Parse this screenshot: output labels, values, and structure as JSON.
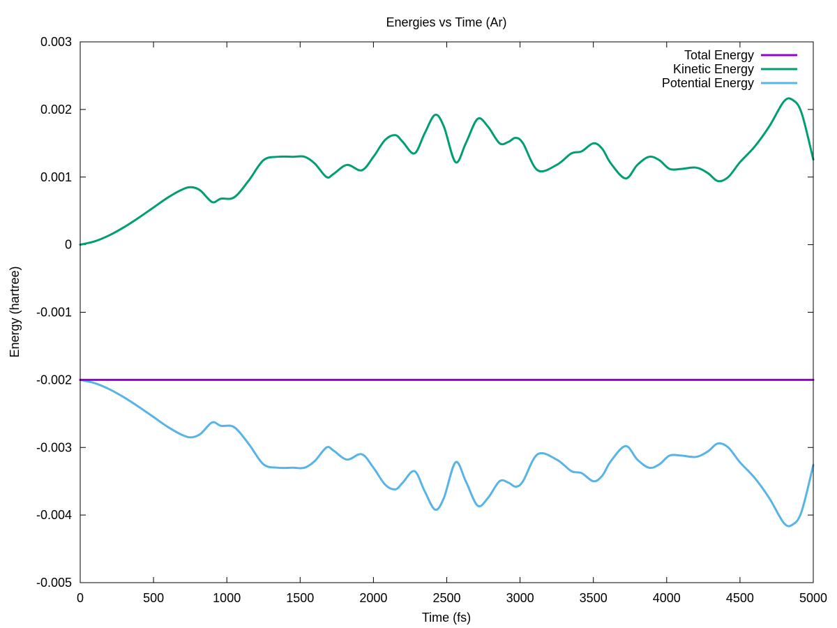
{
  "chart_data": {
    "type": "line",
    "title": "Energies vs Time (Ar)",
    "xlabel": "Time (fs)",
    "ylabel": "Energy (hartree)",
    "xlim": [
      0,
      5000
    ],
    "ylim": [
      -0.005,
      0.003
    ],
    "x_ticks": [
      0,
      500,
      1000,
      1500,
      2000,
      2500,
      3000,
      3500,
      4000,
      4500,
      5000
    ],
    "y_ticks": [
      -0.005,
      -0.004,
      -0.003,
      -0.002,
      -0.001,
      0,
      0.001,
      0.002,
      0.003
    ],
    "x_tick_labels": [
      "0",
      "500",
      "1000",
      "1500",
      "2000",
      "2500",
      "3000",
      "3500",
      "4000",
      "4500",
      "5000"
    ],
    "y_tick_labels": [
      "-0.005",
      "-0.004",
      "-0.003",
      "-0.002",
      "-0.001",
      "0",
      "0.001",
      "0.002",
      "0.003"
    ],
    "grid": false,
    "legend_position": "top-right",
    "series": [
      {
        "name": "Total Energy",
        "color": "#9400d3",
        "x": [
          0,
          500,
          1000,
          1500,
          2000,
          2500,
          3000,
          3500,
          4000,
          4500,
          5000
        ],
        "y": [
          -0.002,
          -0.002,
          -0.002,
          -0.002,
          -0.002,
          -0.002,
          -0.002,
          -0.002,
          -0.002,
          -0.002,
          -0.002
        ]
      },
      {
        "name": "Kinetic Energy",
        "color": "#009e73",
        "x": [
          0,
          100,
          200,
          300,
          400,
          500,
          600,
          700,
          760,
          820,
          900,
          960,
          1050,
          1150,
          1250,
          1350,
          1450,
          1530,
          1600,
          1680,
          1730,
          1820,
          1920,
          2000,
          2080,
          2150,
          2200,
          2280,
          2350,
          2420,
          2480,
          2560,
          2630,
          2710,
          2780,
          2860,
          2920,
          2970,
          3020,
          3120,
          3250,
          3350,
          3420,
          3500,
          3560,
          3620,
          3720,
          3800,
          3880,
          3950,
          4020,
          4100,
          4200,
          4280,
          4350,
          4420,
          4500,
          4600,
          4700,
          4800,
          4860,
          4920,
          5000
        ],
        "y": [
          0.0,
          5e-05,
          0.00014,
          0.00026,
          0.0004,
          0.00055,
          0.0007,
          0.00082,
          0.00085,
          0.0008,
          0.00063,
          0.00068,
          0.0007,
          0.00095,
          0.00125,
          0.0013,
          0.0013,
          0.0013,
          0.0012,
          0.001,
          0.00105,
          0.00118,
          0.0011,
          0.0013,
          0.00155,
          0.00162,
          0.00152,
          0.00135,
          0.00165,
          0.00192,
          0.00175,
          0.00122,
          0.0015,
          0.00186,
          0.00175,
          0.0015,
          0.00152,
          0.00158,
          0.0015,
          0.0011,
          0.00118,
          0.00135,
          0.00138,
          0.0015,
          0.00142,
          0.0012,
          0.00098,
          0.00118,
          0.0013,
          0.00125,
          0.00112,
          0.00112,
          0.00114,
          0.00106,
          0.00094,
          0.001,
          0.00122,
          0.00145,
          0.00175,
          0.00212,
          0.00214,
          0.00195,
          0.00126
        ]
      },
      {
        "name": "Potential Energy",
        "color": "#56b4e9",
        "x": [
          0,
          100,
          200,
          300,
          400,
          500,
          600,
          700,
          760,
          820,
          900,
          960,
          1050,
          1150,
          1250,
          1350,
          1450,
          1530,
          1600,
          1680,
          1730,
          1820,
          1920,
          2000,
          2080,
          2150,
          2200,
          2280,
          2350,
          2420,
          2480,
          2560,
          2630,
          2710,
          2780,
          2860,
          2920,
          2970,
          3020,
          3120,
          3250,
          3350,
          3420,
          3500,
          3560,
          3620,
          3720,
          3800,
          3880,
          3950,
          4020,
          4100,
          4200,
          4280,
          4350,
          4420,
          4500,
          4600,
          4700,
          4800,
          4860,
          4920,
          5000
        ],
        "y": [
          -0.002,
          -0.00205,
          -0.00214,
          -0.00226,
          -0.0024,
          -0.00255,
          -0.0027,
          -0.00282,
          -0.00285,
          -0.0028,
          -0.00263,
          -0.00268,
          -0.0027,
          -0.00295,
          -0.00325,
          -0.0033,
          -0.0033,
          -0.0033,
          -0.0032,
          -0.003,
          -0.00305,
          -0.00318,
          -0.0031,
          -0.0033,
          -0.00355,
          -0.00362,
          -0.00352,
          -0.00335,
          -0.00365,
          -0.00392,
          -0.00375,
          -0.00322,
          -0.0035,
          -0.00386,
          -0.00375,
          -0.0035,
          -0.00352,
          -0.00358,
          -0.0035,
          -0.0031,
          -0.00318,
          -0.00335,
          -0.00338,
          -0.0035,
          -0.00342,
          -0.0032,
          -0.00298,
          -0.00318,
          -0.0033,
          -0.00325,
          -0.00312,
          -0.00312,
          -0.00314,
          -0.00306,
          -0.00294,
          -0.003,
          -0.00322,
          -0.00345,
          -0.00375,
          -0.00412,
          -0.00414,
          -0.00395,
          -0.00326
        ]
      }
    ]
  }
}
